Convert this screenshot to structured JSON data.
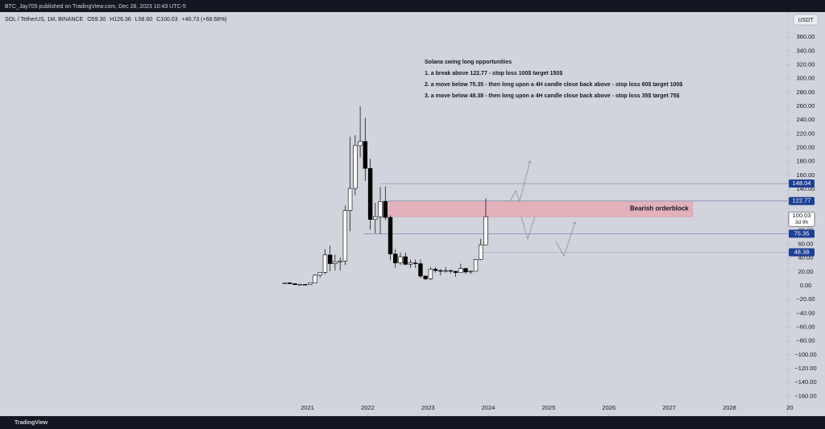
{
  "publisher": "BTC_Jay705 published on TradingView.com, Dec 28, 2023 10:43 UTC-5",
  "currency_button": "USDT",
  "footer_logo": "TradingView",
  "chart_data": {
    "type": "candlestick",
    "header": [
      "SOL / TetherUS, 1M, BINANCE",
      "O59.30",
      "H126.36",
      "L58.60",
      "C100.03",
      "+40.73 (+68.68%)"
    ],
    "x": [
      2020.625,
      2020.708,
      2020.792,
      2020.875,
      2020.958,
      2021.042,
      2021.125,
      2021.208,
      2021.292,
      2021.375,
      2021.458,
      2021.542,
      2021.625,
      2021.708,
      2021.792,
      2021.875,
      2021.958,
      2022.042,
      2022.125,
      2022.208,
      2022.292,
      2022.375,
      2022.458,
      2022.542,
      2022.625,
      2022.708,
      2022.792,
      2022.875,
      2022.958,
      2023.042,
      2023.125,
      2023.208,
      2023.292,
      2023.375,
      2023.458,
      2023.542,
      2023.625,
      2023.708,
      2023.792,
      2023.875,
      2023.958
    ],
    "open": [
      2.8,
      4.3,
      3.0,
      1.6,
      1.9,
      1.5,
      4.1,
      15.3,
      19.4,
      44.6,
      32,
      34.6,
      35.9,
      109,
      141,
      203,
      209,
      170,
      96,
      100,
      122,
      99,
      46,
      33,
      42,
      31,
      33,
      32,
      14,
      10,
      24,
      22,
      21,
      22,
      21,
      19,
      25,
      20,
      21,
      38,
      59.3
    ],
    "high": [
      4.9,
      4.6,
      3.2,
      2.6,
      2.3,
      4.2,
      17,
      19.8,
      53,
      58,
      45,
      41,
      116,
      216,
      218,
      260,
      243,
      184,
      120,
      143,
      144,
      102,
      53,
      48,
      48,
      38,
      38,
      38,
      15,
      27,
      27,
      24,
      27,
      23,
      21,
      32,
      26,
      22,
      39,
      68,
      126.36
    ],
    "low": [
      2.5,
      2.2,
      1.5,
      1.6,
      1.2,
      1.3,
      4,
      12,
      17,
      21,
      22,
      22,
      30,
      79,
      131,
      186,
      152,
      81,
      76,
      75,
      95,
      37,
      26,
      30,
      30,
      26,
      26,
      11,
      8,
      8,
      19,
      15,
      19,
      18,
      13,
      19,
      17,
      17,
      21,
      37,
      58.6
    ],
    "close": [
      4.3,
      3.0,
      1.6,
      1.9,
      1.5,
      4.1,
      15.3,
      19.4,
      44.6,
      32,
      34.6,
      35.9,
      109,
      141,
      203,
      209,
      170,
      96,
      100,
      122,
      99,
      46,
      33,
      42,
      31,
      33,
      32,
      14,
      10,
      24,
      22,
      21,
      22,
      21,
      19,
      25,
      20,
      21,
      38,
      59.3,
      100.03
    ],
    "countdown": "3d 9h",
    "xlim": [
      2015.9,
      2028.97
    ],
    "xticks": [
      2021,
      2022,
      2023,
      2024,
      2025,
      2026,
      2027,
      2028,
      {
        "value": 2029,
        "label": "20"
      }
    ],
    "ylim": [
      -186.5,
      396.4
    ],
    "yticks": [
      {
        "value": -160,
        "label": "−160.00"
      },
      {
        "value": -140,
        "label": "−140.00"
      },
      {
        "value": -120,
        "label": "−120.00"
      },
      {
        "value": -100,
        "label": "−100.00"
      },
      {
        "value": -80,
        "label": "−80.00"
      },
      {
        "value": -60,
        "label": "−60.00"
      },
      {
        "value": -40,
        "label": "−40.00"
      },
      {
        "value": -20,
        "label": "−20.00"
      },
      {
        "value": 0,
        "label": "0.00"
      },
      {
        "value": 20,
        "label": "20.00"
      },
      {
        "value": 40,
        "label": "40.00"
      },
      {
        "value": 60,
        "label": "60.00"
      },
      {
        "value": 80,
        "label": "80.00"
      },
      {
        "value": 100,
        "label": "100.00"
      },
      {
        "value": 120,
        "label": "120.00"
      },
      {
        "value": 140,
        "label": "140.00"
      },
      {
        "value": 160,
        "label": "160.00"
      },
      {
        "value": 180,
        "label": "180.00"
      },
      {
        "value": 200,
        "label": "200.00"
      },
      {
        "value": 220,
        "label": "220.00"
      },
      {
        "value": 240,
        "label": "240.00"
      },
      {
        "value": 260,
        "label": "260.00"
      },
      {
        "value": 280,
        "label": "280.00"
      },
      {
        "value": 300,
        "label": "300.00"
      },
      {
        "value": 320,
        "label": "320.00"
      },
      {
        "value": 340,
        "label": "340.00"
      },
      {
        "value": 360,
        "label": "360.00"
      }
    ],
    "up_color": "#ffffff",
    "down_color": "#000000",
    "levels": [
      {
        "value": 148.04,
        "from": 2022.2,
        "dashed": false
      },
      {
        "value": 122.77,
        "from": 2022.26,
        "dashed": false
      },
      {
        "value": 75.35,
        "from": 2021.93,
        "dashed": false
      },
      {
        "value": 48.38,
        "from": 2023.9,
        "dashed": true
      }
    ],
    "level_color": "#1d3f94",
    "zone": {
      "label": "Bearish orderblock",
      "top": 122.77,
      "bottom": 100,
      "x": [
        2022.26,
        2027.39
      ],
      "color": "#e3b1ba"
    },
    "notes": {
      "title": "Solana swing long opportunities",
      "lines": [
        "1. a break above 122.77 - stop loss 100$ target 150$",
        "2. a move below 75.35 - then long upon a 4H candle close back above - stop loss 60$ target 100$",
        "3. a move below 48.38 - then long upon a 4H candle close back above - stop loss 35$ target 75$"
      ]
    }
  }
}
